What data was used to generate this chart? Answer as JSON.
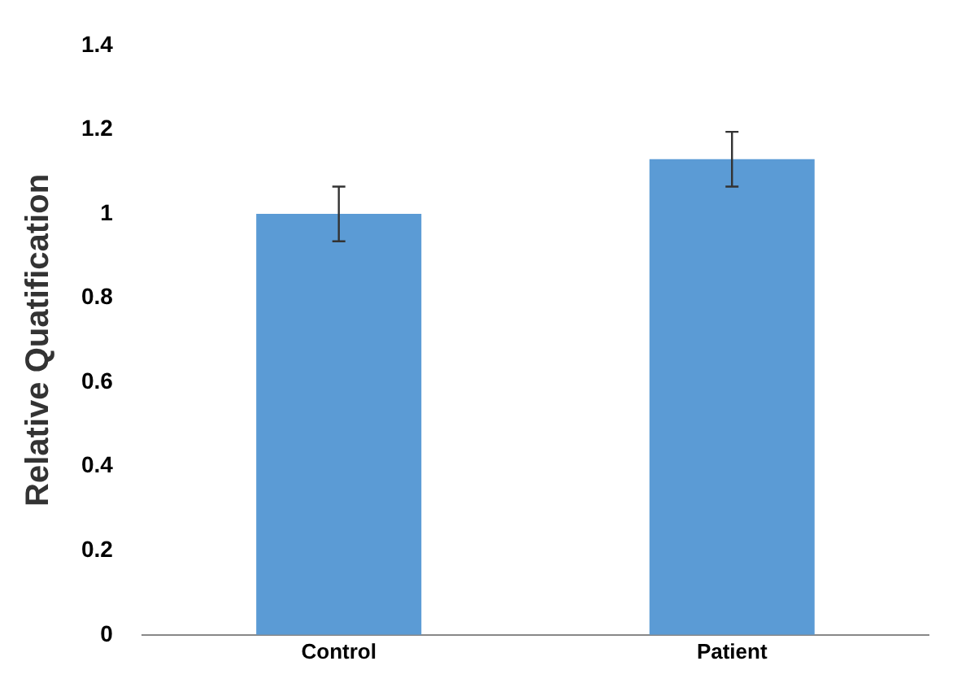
{
  "chart_data": {
    "type": "bar",
    "ylabel": "Relative Quatification",
    "categories": [
      "Control",
      "Patient"
    ],
    "values": [
      1.0,
      1.13
    ],
    "errors": [
      0.065,
      0.065
    ],
    "color": "#5b9bd5",
    "ylim": [
      0,
      1.4
    ],
    "yticks": [
      0,
      0.2,
      0.4,
      0.6,
      0.8,
      1,
      1.2,
      1.4
    ],
    "grid": false
  }
}
